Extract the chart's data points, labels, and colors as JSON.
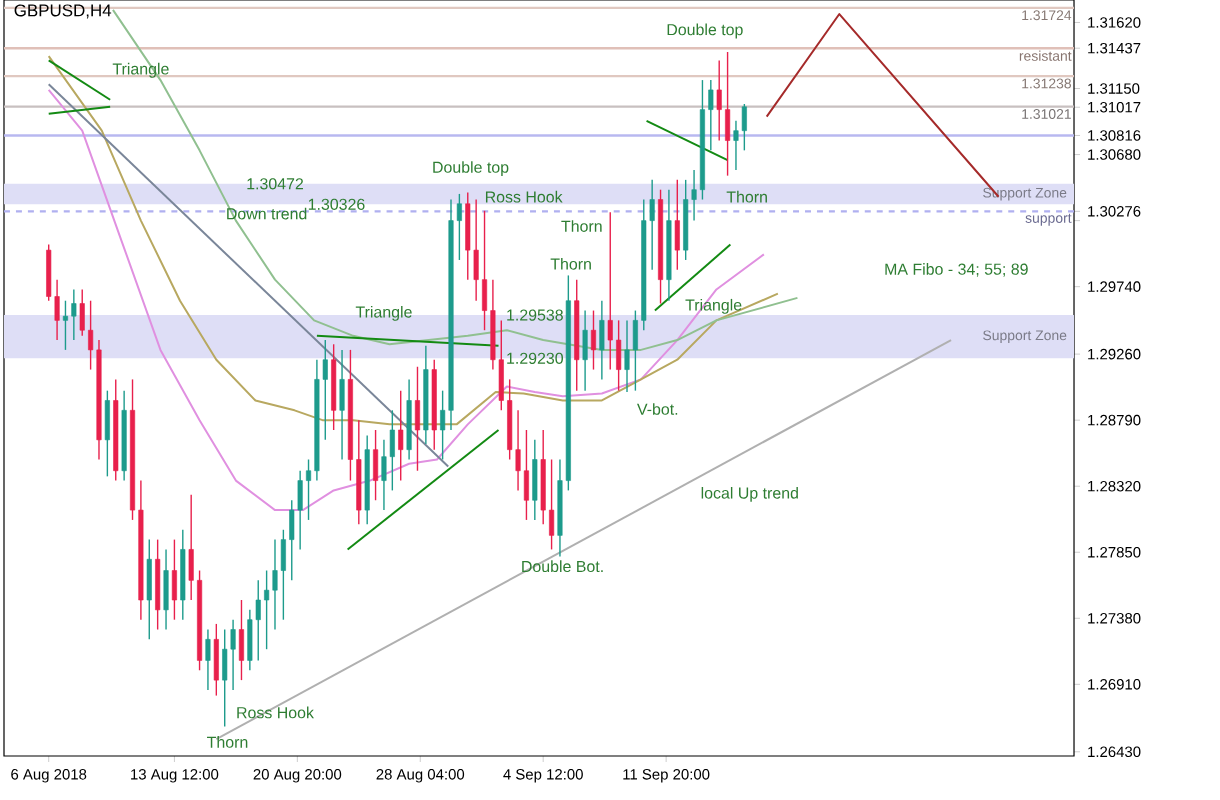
{
  "chart_data": {
    "type": "candlestick",
    "title": "GBPUSD,H4",
    "xlim": [
      "2018-08-03T08:00",
      "2018-10-06T04:00"
    ],
    "xticks": [
      {
        "value": "2018-08-06T00:00",
        "label": "6 Aug 2018"
      },
      {
        "value": "2018-08-13T12:00",
        "label": "13 Aug 12:00"
      },
      {
        "value": "2018-08-20T20:00",
        "label": "20 Aug 20:00"
      },
      {
        "value": "2018-08-28T04:00",
        "label": "28 Aug 04:00"
      },
      {
        "value": "2018-09-04T12:00",
        "label": "4 Sep 12:00"
      },
      {
        "value": "2018-09-11T20:00",
        "label": "11 Sep 20:00"
      }
    ],
    "ylim": [
      1.264,
      1.3178
    ],
    "yticks": [
      {
        "value": 1.2643,
        "label": "1.26430"
      },
      {
        "value": 1.2691,
        "label": "1.26910"
      },
      {
        "value": 1.2738,
        "label": "1.27380"
      },
      {
        "value": 1.2785,
        "label": "1.27850"
      },
      {
        "value": 1.2832,
        "label": "1.28320"
      },
      {
        "value": 1.2879,
        "label": "1.28790"
      },
      {
        "value": 1.2926,
        "label": "1.29260"
      },
      {
        "value": 1.2974,
        "label": "1.29740"
      },
      {
        "value": 1.3021,
        "label": null
      },
      {
        "value": 1.3068,
        "label": "1.30680"
      },
      {
        "value": 1.3115,
        "label": "1.31150"
      },
      {
        "value": 1.3162,
        "label": "1.31620"
      },
      1.30276,
      1.30816,
      1.31017,
      1.31437
    ],
    "ref_lines": [
      {
        "axis": "y",
        "value": 1.31724,
        "label": "1.31724",
        "color": "#e0c8c0"
      },
      {
        "axis": "y",
        "value": 1.31437,
        "label": "resistant",
        "color": "#e0c0b8"
      },
      {
        "axis": "y",
        "value": 1.31238,
        "label": "1.31238",
        "color": "#e0c8c0"
      },
      {
        "axis": "y",
        "value": 1.31021,
        "label": "1.31021",
        "color": "#c8c0c0"
      },
      {
        "axis": "y",
        "value": 1.30816,
        "color": "#b8b8f0"
      },
      {
        "axis": "y",
        "value": 1.30276,
        "label": "support",
        "color": "#b0b0f0",
        "line_style": "dashed"
      }
    ],
    "bands": [
      {
        "axis": "y",
        "from": 1.30326,
        "to": 1.30472,
        "label": "Support Zone",
        "color": "#dedef6"
      },
      {
        "axis": "y",
        "from": 1.2923,
        "to": 1.29538,
        "label": "Support Zone",
        "color": "#dedef6"
      }
    ],
    "annotations": [
      {
        "text": "Triangle",
        "x": "2018-08-11T12:00",
        "y": 1.3128
      },
      {
        "text": "Down trend",
        "x": "2018-08-19T00:00",
        "y": 1.3026
      },
      {
        "text": "Triangle",
        "x": "2018-08-26T00:00",
        "y": 1.2955
      },
      "Double top",
      {
        "text": "Ross Hook",
        "x": "2018-09-03T08:00",
        "y": 1.3038
      },
      "Thorn",
      "Thorn",
      "Double top",
      {
        "text": "Thorn",
        "x": "2018-09-16T16:00",
        "y": 1.3038
      },
      {
        "text": "Triangle",
        "x": "2018-09-14T16:00",
        "y": 1.296
      },
      "V-bot.",
      "Double Bot.",
      "local Up trend",
      "MA Fibo - 34; 55; 89",
      {
        "text": "Ross Hook",
        "x": "2018-08-19T12:00",
        "y": 1.2671
      },
      {
        "text": "Thorn",
        "x": "2018-08-16T16:00",
        "y": 1.265
      },
      {
        "text": "1.30472",
        "x": "2018-08-19T12:00",
        "y": 1.30472
      },
      {
        "text": "1.30326",
        "x": "2018-08-23T04:00",
        "y": 1.30326
      },
      {
        "text": "1.29538",
        "x": "2018-09-04T00:00",
        "y": 1.29538
      },
      {
        "text": "1.29230",
        "x": "2018-09-04T00:00",
        "y": 1.2923
      }
    ],
    "series": [
      {
        "type": "line",
        "color": "#e090e0",
        "x": [
          "2018-08-06T00:00",
          "2018-08-08T00:00",
          "2018-08-10T08:00",
          "2018-08-12T16:00",
          "2018-08-15T00:00",
          "2018-08-17T04:00",
          "2018-08-19T12:00",
          "2018-08-21T04:00",
          "2018-08-23T00:00",
          "2018-08-25T04:00",
          "2018-08-27T12:00",
          "2018-08-29T04:00",
          "2018-08-31T00:00",
          "2018-09-02T08:00",
          "2018-09-04T00:00",
          "2018-09-05T16:00",
          "2018-09-08T00:00",
          "2018-09-10T08:00",
          "2018-09-12T12:00",
          "2018-09-14T20:00",
          "2018-09-17T16:00"
        ],
        "values": [
          1.3114,
          1.3085,
          1.3007,
          1.2929,
          1.2879,
          1.2836,
          1.2815,
          1.2815,
          1.2829,
          1.2836,
          1.2848,
          1.2851,
          1.2876,
          1.2903,
          1.2899,
          1.2896,
          1.2898,
          1.2908,
          1.2936,
          1.2972,
          1.2997
        ]
      },
      {
        "type": "line",
        "color": "#b8a860",
        "x": [
          "2018-08-06T00:00",
          "2018-08-09T04:00",
          "2018-08-11T12:00",
          "2018-08-13T20:00",
          "2018-08-16T00:00",
          "2018-08-18T08:00",
          "2018-08-20T16:00",
          "2018-08-22T08:00",
          "2018-08-24T04:00",
          "2018-08-26T08:00",
          "2018-08-28T16:00",
          "2018-08-30T08:00",
          "2018-09-01T16:00",
          "2018-09-03T08:00",
          "2018-09-05T16:00",
          "2018-09-08T00:00",
          "2018-09-10T08:00",
          "2018-09-12T12:00",
          "2018-09-14T20:00",
          "2018-09-18T12:00"
        ],
        "values": [
          1.3138,
          1.3085,
          1.3021,
          1.2964,
          1.2922,
          1.2893,
          1.2886,
          1.2879,
          1.2879,
          1.2876,
          1.2876,
          1.2876,
          1.2899,
          1.2898,
          1.2893,
          1.2893,
          1.2908,
          1.2922,
          1.295,
          1.2969
        ]
      },
      {
        "type": "line",
        "color": "#90c090",
        "x": [
          "2018-08-09T20:00",
          "2018-08-12T16:00",
          "2018-08-15T00:00",
          "2018-08-17T04:00",
          "2018-08-19T12:00",
          "2018-08-21T20:00",
          "2018-08-24T04:00",
          "2018-08-26T08:00",
          "2018-08-28T16:00",
          "2018-08-31T00:00",
          "2018-09-02T08:00",
          "2018-09-04T12:00",
          "2018-09-08T00:00",
          "2018-09-10T08:00",
          "2018-09-12T12:00",
          "2018-09-14T20:00",
          "2018-09-19T16:00"
        ],
        "values": [
          1.3171,
          1.3121,
          1.3071,
          1.3021,
          1.2979,
          1.295,
          1.2939,
          1.2933,
          1.2936,
          1.2939,
          1.2943,
          1.2936,
          1.2929,
          1.2929,
          1.2936,
          1.295,
          1.2966
        ]
      },
      {
        "type": "line",
        "color": "#7a8699",
        "x": [
          "2018-08-06T00:00",
          "2018-08-29T20:00"
        ],
        "values": [
          1.3118,
          1.2846
        ]
      },
      {
        "type": "line",
        "color": "#b0b0b0",
        "x": [
          "2018-08-16T00:00",
          "2018-09-28T20:00"
        ],
        "values": [
          1.2652,
          1.2936
        ]
      },
      {
        "type": "line",
        "color": "#a52a2a",
        "x": [
          "2018-09-17T20:00",
          "2018-09-22T04:00",
          "2018-10-01T16:00"
        ],
        "values": [
          1.3095,
          1.3168,
          1.3038
        ]
      },
      {
        "type": "line",
        "color": "#138a13",
        "x": [
          "2018-08-06T00:00",
          "2018-08-09T16:00"
        ],
        "values": [
          1.3135,
          1.3107
        ]
      },
      {
        "type": "line",
        "color": "#138a13",
        "x": [
          "2018-08-06T00:00",
          "2018-08-09T16:00"
        ],
        "values": [
          1.3097,
          1.3102
        ]
      },
      {
        "type": "line",
        "color": "#138a13",
        "x": [
          "2018-08-22T00:00",
          "2018-09-01T20:00"
        ],
        "values": [
          1.2939,
          1.2932
        ]
      },
      {
        "type": "line",
        "color": "#138a13",
        "x": [
          "2018-08-23T20:00",
          "2018-09-01T20:00"
        ],
        "values": [
          1.2787,
          1.2872
        ]
      },
      {
        "type": "line",
        "color": "#138a13",
        "x": [
          "2018-09-10T16:00",
          "2018-09-15T12:00"
        ],
        "values": [
          1.3092,
          1.3064
        ]
      },
      {
        "type": "line",
        "color": "#138a13",
        "x": [
          "2018-09-11T04:00",
          "2018-09-15T16:00"
        ],
        "values": [
          1.2957,
          1.3004
        ]
      },
      {
        "x": [
          "2018-08-06T00:00",
          "2018-08-06T12:00",
          "2018-08-07T00:00",
          "2018-08-07T12:00",
          "2018-08-08T00:00",
          "2018-08-08T12:00",
          "2018-08-09T00:00",
          "2018-08-09T12:00",
          "2018-08-10T00:00",
          "2018-08-10T12:00",
          "2018-08-11T00:00",
          "2018-08-11T12:00",
          "2018-08-12T00:00",
          "2018-08-12T12:00",
          "2018-08-13T00:00",
          "2018-08-13T12:00",
          "2018-08-14T00:00",
          "2018-08-14T12:00",
          "2018-08-15T00:00",
          "2018-08-15T12:00",
          "2018-08-16T00:00",
          "2018-08-16T12:00",
          "2018-08-17T00:00",
          "2018-08-17T12:00",
          "2018-08-18T00:00",
          "2018-08-18T12:00",
          "2018-08-19T00:00",
          "2018-08-19T12:00",
          "2018-08-20T00:00",
          "2018-08-20T12:00",
          "2018-08-21T00:00",
          "2018-08-21T12:00",
          "2018-08-22T00:00",
          "2018-08-22T12:00",
          "2018-08-23T00:00",
          "2018-08-23T12:00",
          "2018-08-24T00:00",
          "2018-08-24T12:00",
          "2018-08-25T00:00",
          "2018-08-25T12:00",
          "2018-08-26T00:00",
          "2018-08-26T12:00",
          "2018-08-27T00:00",
          "2018-08-27T12:00",
          "2018-08-28T00:00",
          "2018-08-28T12:00",
          "2018-08-29T00:00",
          "2018-08-29T12:00",
          "2018-08-30T00:00",
          "2018-08-30T12:00",
          "2018-08-31T00:00",
          "2018-08-31T12:00",
          "2018-09-01T00:00",
          "2018-09-01T12:00",
          "2018-09-02T00:00",
          "2018-09-02T12:00",
          "2018-09-03T00:00",
          "2018-09-03T12:00",
          "2018-09-04T00:00",
          "2018-09-04T12:00",
          "2018-09-05T00:00",
          "2018-09-05T12:00",
          "2018-09-06T00:00",
          "2018-09-06T12:00",
          "2018-09-07T00:00",
          "2018-09-07T12:00",
          "2018-09-08T00:00",
          "2018-09-08T12:00",
          "2018-09-09T00:00",
          "2018-09-09T12:00",
          "2018-09-10T00:00",
          "2018-09-10T12:00",
          "2018-09-11T00:00",
          "2018-09-11T12:00",
          "2018-09-12T00:00",
          "2018-09-12T12:00",
          "2018-09-13T00:00",
          "2018-09-13T12:00",
          "2018-09-14T00:00",
          "2018-09-14T12:00",
          "2018-09-15T00:00",
          "2018-09-15T12:00",
          "2018-09-16T00:00",
          "2018-09-16T12:00"
        ],
        "ohlc": [
          [
            1.3,
            1.3004,
            1.2964,
            1.2967
          ],
          [
            1.2967,
            1.2979,
            1.2936,
            1.295
          ],
          [
            1.295,
            1.2964,
            1.2929,
            1.2953
          ],
          [
            1.2953,
            1.2972,
            1.2936,
            1.2962
          ],
          [
            1.2962,
            1.2972,
            1.2939,
            1.2943
          ],
          [
            1.2943,
            1.2964,
            1.2915,
            1.2929
          ],
          [
            1.2929,
            1.2936,
            1.2851,
            1.2865
          ],
          [
            1.2865,
            1.29,
            1.2839,
            1.2893
          ],
          [
            1.2893,
            1.2908,
            1.2836,
            1.2843
          ],
          [
            1.2843,
            1.29,
            1.2836,
            1.2886
          ],
          [
            1.2886,
            1.2908,
            1.2808,
            1.2815
          ],
          [
            1.2815,
            1.2836,
            1.2737,
            1.2751
          ],
          [
            1.2751,
            1.2794,
            1.2723,
            1.278
          ],
          [
            1.278,
            1.2794,
            1.273,
            1.2744
          ],
          [
            1.2744,
            1.2787,
            1.273,
            1.2772
          ],
          [
            1.2772,
            1.2794,
            1.2737,
            1.2751
          ],
          [
            1.2751,
            1.2801,
            1.2737,
            1.2787
          ],
          [
            1.2787,
            1.2826,
            1.2751,
            1.2765
          ],
          [
            1.2765,
            1.2772,
            1.2701,
            1.2708
          ],
          [
            1.2708,
            1.273,
            1.2687,
            1.2723
          ],
          [
            1.2723,
            1.2734,
            1.2683,
            1.2694
          ],
          [
            1.2694,
            1.273,
            1.2661,
            1.2716
          ],
          [
            1.2716,
            1.2737,
            1.2687,
            1.273
          ],
          [
            1.273,
            1.2751,
            1.2694,
            1.2708
          ],
          [
            1.2708,
            1.2744,
            1.2701,
            1.2737
          ],
          [
            1.2737,
            1.2765,
            1.2708,
            1.2751
          ],
          [
            1.2751,
            1.2772,
            1.2716,
            1.2758
          ],
          [
            1.2758,
            1.2794,
            1.273,
            1.2772
          ],
          [
            1.2772,
            1.2801,
            1.2737,
            1.2794
          ],
          [
            1.2794,
            1.2822,
            1.2765,
            1.2815
          ],
          [
            1.2815,
            1.2843,
            1.2787,
            1.2836
          ],
          [
            1.2836,
            1.2851,
            1.2808,
            1.2843
          ],
          [
            1.2843,
            1.2922,
            1.2836,
            1.2908
          ],
          [
            1.2908,
            1.2936,
            1.2865,
            1.2922
          ],
          [
            1.2922,
            1.2933,
            1.2872,
            1.2886
          ],
          [
            1.2886,
            1.2929,
            1.2851,
            1.2908
          ],
          [
            1.2908,
            1.2929,
            1.2836,
            1.2851
          ],
          [
            1.2851,
            1.2879,
            1.2805,
            1.2815
          ],
          [
            1.2815,
            1.2868,
            1.2805,
            1.2858
          ],
          [
            1.2858,
            1.2872,
            1.2822,
            1.2836
          ],
          [
            1.2836,
            1.2865,
            1.2815,
            1.2853
          ],
          [
            1.2853,
            1.2886,
            1.2829,
            1.2872
          ],
          [
            1.2872,
            1.29,
            1.2836,
            1.2858
          ],
          [
            1.2858,
            1.2908,
            1.2851,
            1.2893
          ],
          [
            1.2893,
            1.2917,
            1.2843,
            1.2872
          ],
          [
            1.2872,
            1.2932,
            1.2862,
            1.2915
          ],
          [
            1.2915,
            1.2922,
            1.2858,
            1.2872
          ],
          [
            1.2872,
            1.29,
            1.2851,
            1.2886
          ],
          [
            1.2886,
            1.3036,
            1.2872,
            1.3021
          ],
          [
            1.3021,
            1.304,
            1.2993,
            1.3033
          ],
          [
            1.3033,
            1.3041,
            1.2979,
            1.3
          ],
          [
            1.3,
            1.3036,
            1.2964,
            1.2979
          ],
          [
            1.2979,
            1.3028,
            1.2943,
            1.2957
          ],
          [
            1.2957,
            1.2979,
            1.2915,
            1.2922
          ],
          [
            1.2922,
            1.295,
            1.2886,
            1.2893
          ],
          [
            1.2893,
            1.2908,
            1.2851,
            1.2858
          ],
          [
            1.2858,
            1.2886,
            1.2829,
            1.2843
          ],
          [
            1.2843,
            1.2872,
            1.2808,
            1.2822
          ],
          [
            1.2822,
            1.2865,
            1.2808,
            1.2851
          ],
          [
            1.2851,
            1.2872,
            1.2805,
            1.2815
          ],
          [
            1.2815,
            1.2851,
            1.2787,
            1.2797
          ],
          [
            1.2797,
            1.2851,
            1.2782,
            1.2836
          ],
          [
            1.2836,
            1.2982,
            1.2829,
            1.2964
          ],
          [
            1.2964,
            1.2979,
            1.29,
            1.2922
          ],
          [
            1.2922,
            1.2957,
            1.29,
            1.2943
          ],
          [
            1.2943,
            1.2957,
            1.2915,
            1.2929
          ],
          [
            1.2929,
            1.2964,
            1.2908,
            1.295
          ],
          [
            1.295,
            1.3027,
            1.2915,
            1.2936
          ],
          [
            1.2936,
            1.295,
            1.29,
            1.2915
          ],
          [
            1.2915,
            1.295,
            1.2899,
            1.2929
          ],
          [
            1.2929,
            1.2957,
            1.29,
            1.295
          ],
          [
            1.295,
            1.3036,
            1.2943,
            1.3021
          ],
          [
            1.3021,
            1.305,
            1.2986,
            1.3036
          ],
          [
            1.3036,
            1.3043,
            1.2962,
            1.2979
          ],
          [
            1.2979,
            1.3043,
            1.2964,
            1.3021
          ],
          [
            1.3021,
            1.305,
            1.2986,
            1.3
          ],
          [
            1.3,
            1.305,
            1.2993,
            1.3036
          ],
          [
            1.3036,
            1.3057,
            1.3021,
            1.3043
          ],
          [
            1.3043,
            1.3121,
            1.3036,
            1.31
          ],
          [
            1.31,
            1.3121,
            1.3071,
            1.3114
          ],
          [
            1.3114,
            1.3135,
            1.3078,
            1.31
          ],
          [
            1.31,
            1.3141,
            1.3053,
            1.3078
          ],
          [
            1.3078,
            1.3092,
            1.3057,
            1.3085
          ],
          [
            1.3085,
            1.3104,
            1.3071,
            1.3102
          ]
        ],
        "colors": [
          "#e8204c",
          "#e8204c",
          "#1d9b8c",
          "#1d9b8c",
          "#e8204c",
          "#e8204c",
          "#e8204c",
          "#1d9b8c",
          "#e8204c",
          "#1d9b8c",
          "#e8204c",
          "#e8204c",
          "#1d9b8c",
          "#e8204c",
          "#1d9b8c",
          "#e8204c",
          "#1d9b8c",
          "#e8204c",
          "#e8204c",
          "#1d9b8c",
          "#e8204c",
          "#1d9b8c",
          "#1d9b8c",
          "#e8204c",
          "#1d9b8c",
          "#1d9b8c",
          "#1d9b8c",
          "#1d9b8c",
          "#1d9b8c",
          "#1d9b8c",
          "#1d9b8c",
          "#1d9b8c",
          "#1d9b8c",
          "#1d9b8c",
          "#e8204c",
          "#1d9b8c",
          "#e8204c",
          "#e8204c",
          "#1d9b8c",
          "#e8204c",
          "#1d9b8c",
          "#1d9b8c",
          "#e8204c",
          "#1d9b8c",
          "#e8204c",
          "#1d9b8c",
          "#e8204c",
          "#1d9b8c",
          "#1d9b8c",
          "#1d9b8c",
          "#e8204c",
          "#e8204c",
          "#e8204c",
          "#e8204c",
          "#e8204c",
          "#e8204c",
          "#e8204c",
          "#e8204c",
          "#1d9b8c",
          "#e8204c",
          "#e8204c",
          "#1d9b8c",
          "#1d9b8c",
          "#e8204c",
          "#1d9b8c",
          "#e8204c",
          "#1d9b8c",
          "#e8204c",
          "#e8204c",
          "#1d9b8c",
          "#1d9b8c",
          "#1d9b8c",
          "#1d9b8c",
          "#e8204c",
          "#1d9b8c",
          "#e8204c",
          "#1d9b8c",
          "#1d9b8c",
          "#1d9b8c",
          "#1d9b8c",
          "#e8204c",
          "#e8204c",
          "#1d9b8c",
          "#1d9b8c"
        ]
      }
    ]
  }
}
